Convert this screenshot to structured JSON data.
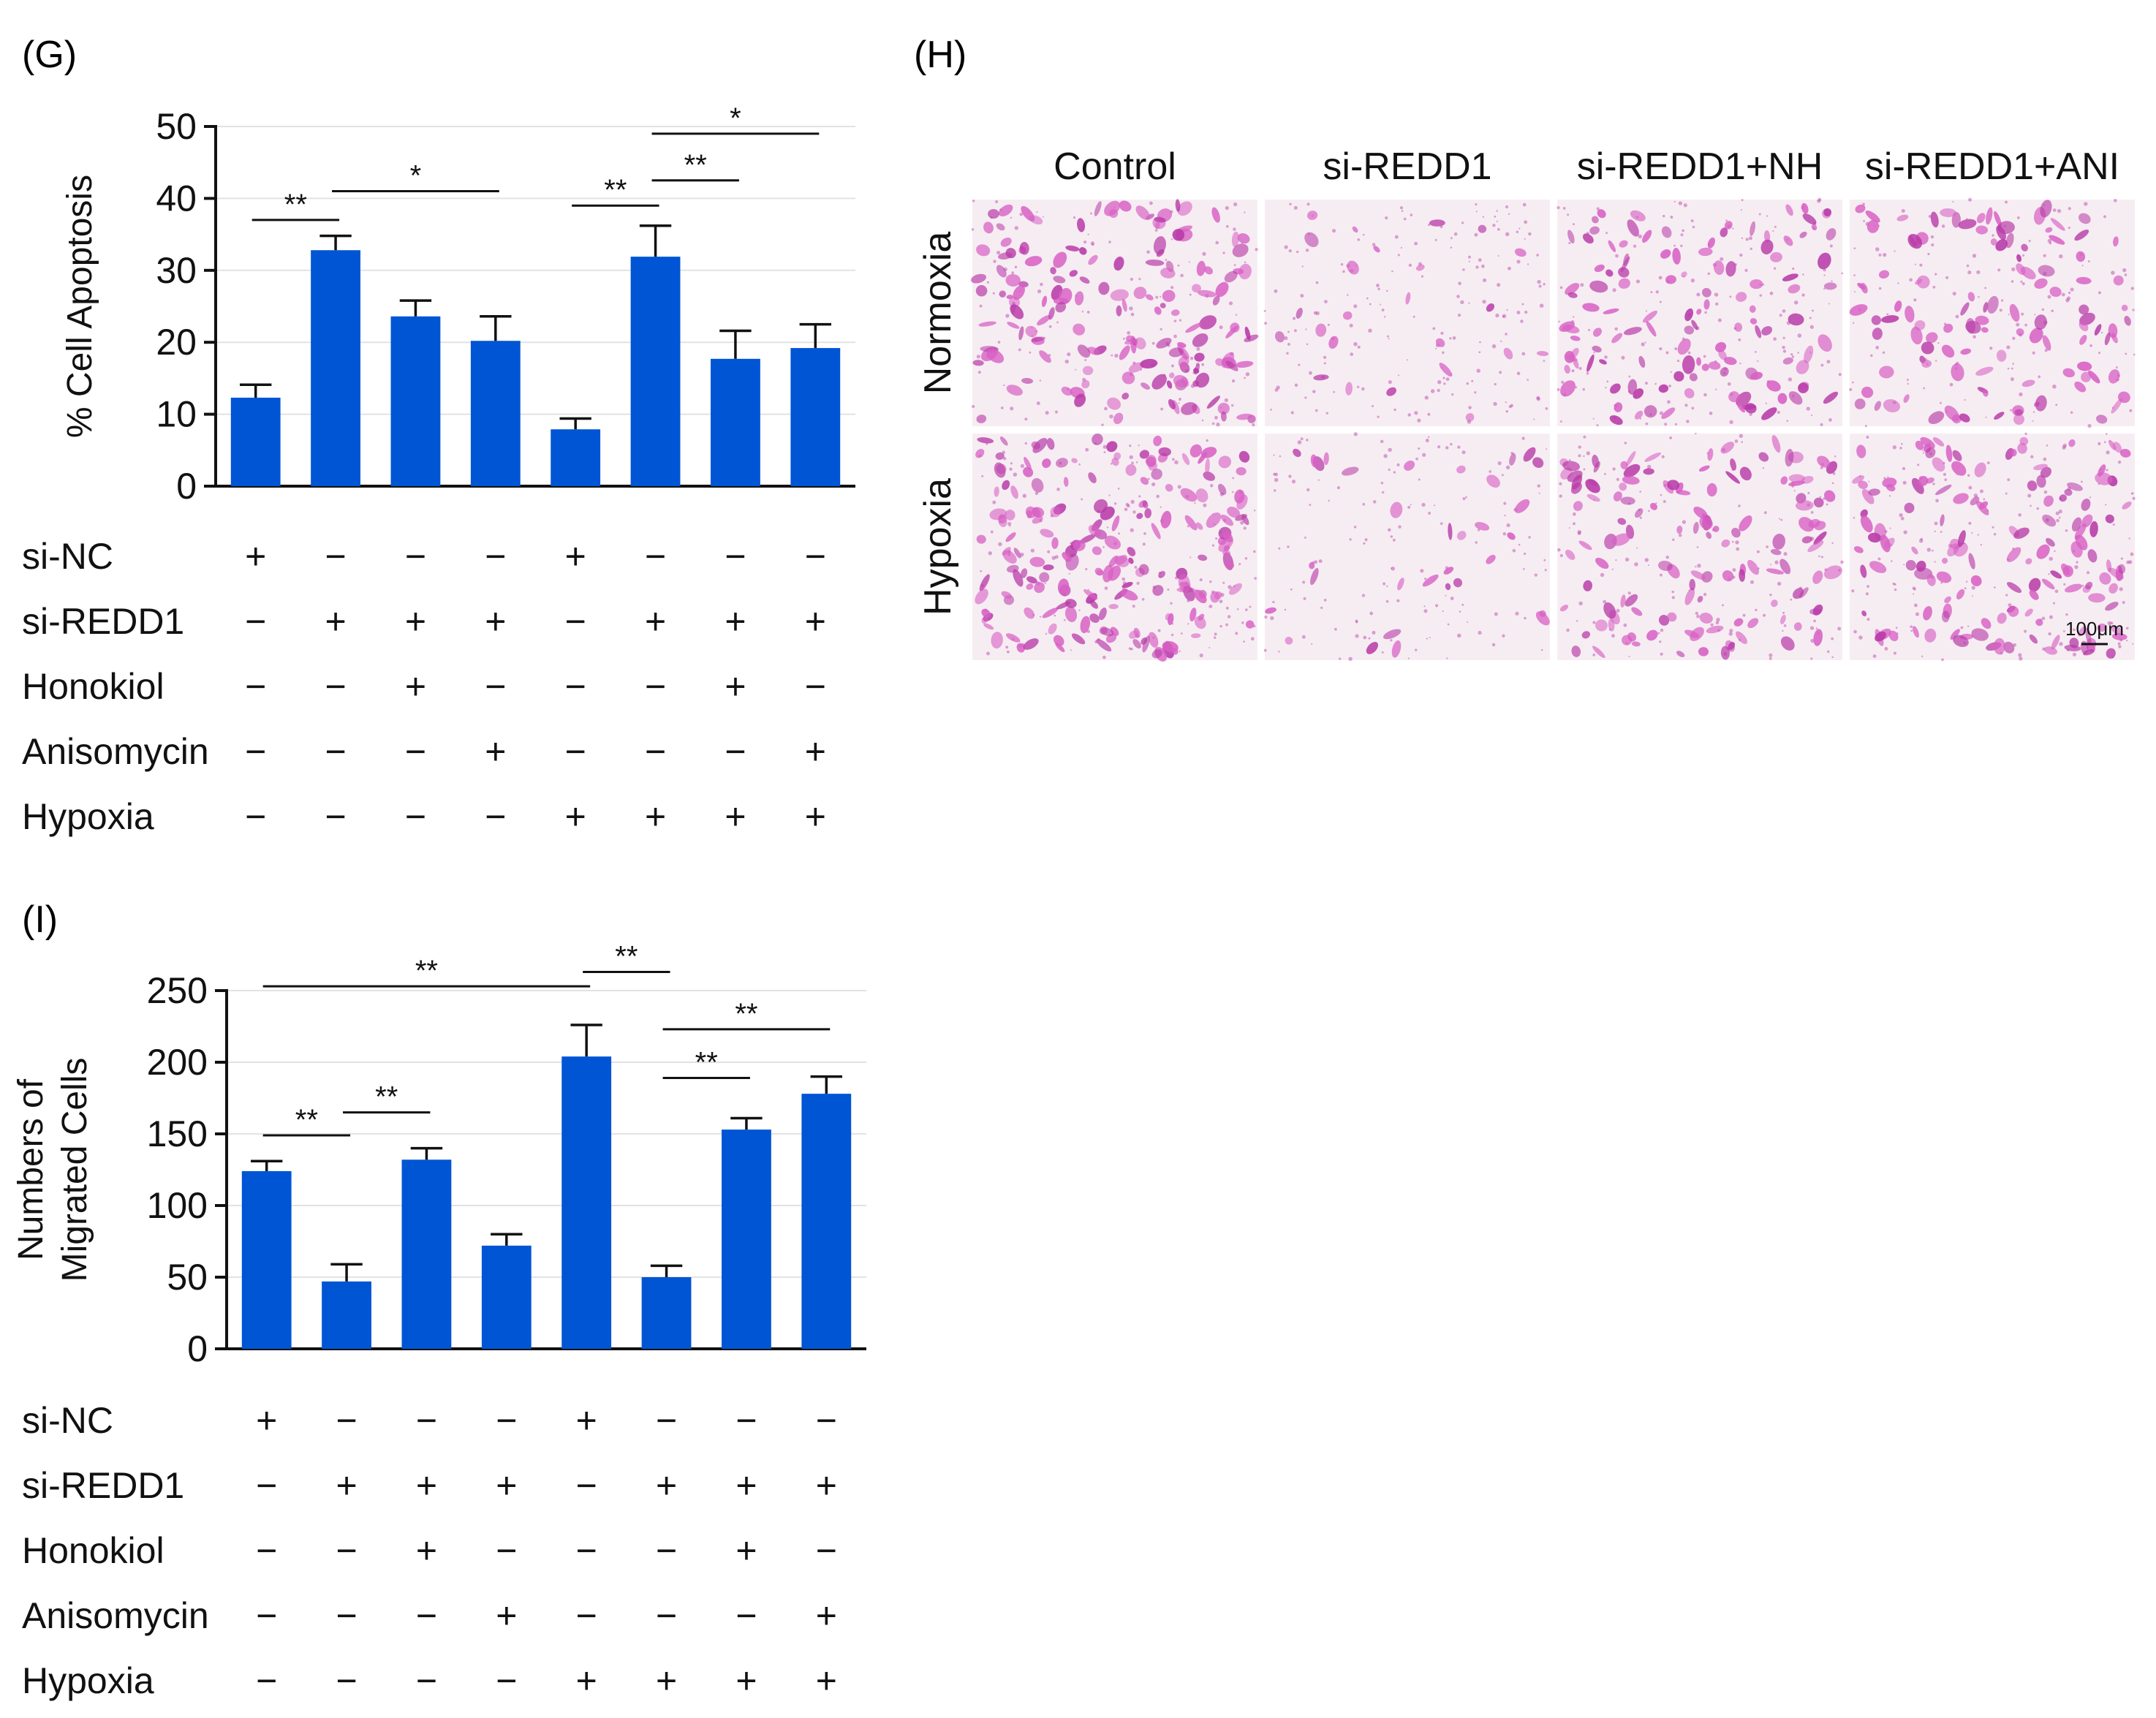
{
  "panels": {
    "G": {
      "label": "(G)"
    },
    "H": {
      "label": "(H)"
    },
    "I": {
      "label": "(I)"
    }
  },
  "conditions": {
    "rows": [
      "si-NC",
      "si-REDD1",
      "Honokiol",
      "Anisomycin",
      "Hypoxia"
    ],
    "matrix": [
      [
        "+",
        "−",
        "−",
        "−",
        "+",
        "−",
        "−",
        "−"
      ],
      [
        "−",
        "+",
        "+",
        "+",
        "−",
        "+",
        "+",
        "+"
      ],
      [
        "−",
        "−",
        "+",
        "−",
        "−",
        "−",
        "+",
        "−"
      ],
      [
        "−",
        "−",
        "−",
        "+",
        "−",
        "−",
        "−",
        "+"
      ],
      [
        "−",
        "−",
        "−",
        "−",
        "+",
        "+",
        "+",
        "+"
      ]
    ]
  },
  "micrographs": {
    "columns": [
      "Control",
      "si-REDD1",
      "si-REDD1+NH",
      "si-REDD1+ANI"
    ],
    "rows": [
      "Normoxia",
      "Hypoxia"
    ],
    "density": [
      [
        1.0,
        0.15,
        0.75,
        0.7
      ],
      [
        1.2,
        0.2,
        0.8,
        0.9
      ]
    ],
    "scale_bar": "100μm",
    "colors": {
      "background": "#f6edf2",
      "cell": "#d860c4",
      "cell_dark": "#b83aa8"
    }
  },
  "chart_data": [
    {
      "type": "bar",
      "panel": "G",
      "ylabel": "% Cell Apoptosis",
      "ylim": [
        0,
        50
      ],
      "yticks": [
        "0",
        "10",
        "20",
        "30",
        "40",
        "50"
      ],
      "categories": [
        "1",
        "2",
        "3",
        "4",
        "5",
        "6",
        "7",
        "8"
      ],
      "values": [
        12.3,
        32.8,
        23.6,
        20.2,
        7.9,
        31.9,
        17.7,
        19.2
      ],
      "errors": [
        1.8,
        2.0,
        2.2,
        3.4,
        1.5,
        4.3,
        3.9,
        3.3
      ],
      "color": "#0055d4",
      "grid": true,
      "significance": [
        {
          "from": 1,
          "to": 2,
          "y": 37,
          "label": "**"
        },
        {
          "from": 2,
          "to": 4,
          "y": 41,
          "label": "*"
        },
        {
          "from": 5,
          "to": 6,
          "y": 39,
          "label": "**"
        },
        {
          "from": 6,
          "to": 7,
          "y": 42.5,
          "label": "**"
        },
        {
          "from": 6,
          "to": 8,
          "y": 49,
          "label": "*"
        }
      ]
    },
    {
      "type": "bar",
      "panel": "I",
      "ylabel": [
        "Numbers of",
        "Migrated Cells"
      ],
      "ylim": [
        0,
        250
      ],
      "yticks": [
        "0",
        "50",
        "100",
        "150",
        "200",
        "250"
      ],
      "categories": [
        "1",
        "2",
        "3",
        "4",
        "5",
        "6",
        "7",
        "8"
      ],
      "values": [
        124,
        47,
        132,
        72,
        204,
        50,
        153,
        178
      ],
      "errors": [
        7,
        12,
        8,
        8,
        22,
        8,
        8,
        12
      ],
      "color": "#0055d4",
      "grid": true,
      "significance": [
        {
          "from": 1,
          "to": 5,
          "y": 253,
          "label": "**"
        },
        {
          "from": 5,
          "to": 6,
          "y": 263,
          "label": "**"
        },
        {
          "from": 1,
          "to": 2,
          "y": 149,
          "label": "**"
        },
        {
          "from": 2,
          "to": 3,
          "y": 165,
          "label": "**"
        },
        {
          "from": 6,
          "to": 7,
          "y": 189,
          "label": "**"
        },
        {
          "from": 6,
          "to": 8,
          "y": 223,
          "label": "**"
        }
      ]
    }
  ]
}
